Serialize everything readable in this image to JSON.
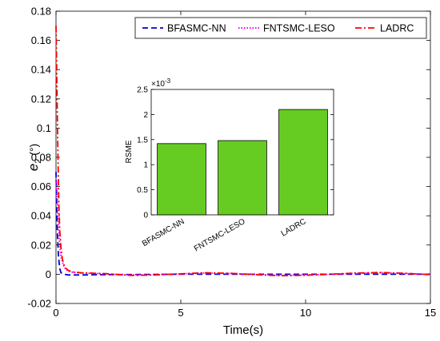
{
  "chart_data": [
    {
      "type": "line",
      "xlabel": "Time(s)",
      "ylabel_main": "e",
      "ylabel_sub": "2",
      "ylabel_unit": " (°)",
      "xlim": [
        0,
        15
      ],
      "ylim": [
        -0.02,
        0.18
      ],
      "xticks": [
        0,
        5,
        10,
        15
      ],
      "yticks": [
        -0.02,
        0,
        0.02,
        0.04,
        0.06,
        0.08,
        0.1,
        0.12,
        0.14,
        0.16,
        0.18
      ],
      "legend_position": "top-right",
      "series": [
        {
          "name": "BFASMC-NN",
          "color": "#0000cc",
          "style": "dashed",
          "x": [
            0,
            0.02,
            0.05,
            0.1,
            0.15,
            0.2,
            0.3,
            0.5,
            1,
            2,
            5,
            10,
            15
          ],
          "y": [
            0.07,
            0.055,
            0.03,
            0.012,
            0.004,
            0.001,
            0,
            -0.0005,
            -0.0005,
            -0.0003,
            0,
            0,
            0
          ]
        },
        {
          "name": "FNTSMC-LESO",
          "color": "#ff00ff",
          "style": "dotted",
          "x": [
            0,
            0.03,
            0.06,
            0.1,
            0.15,
            0.2,
            0.3,
            0.4,
            0.6,
            1,
            2,
            3,
            4,
            5,
            6,
            7,
            8,
            9,
            10,
            11,
            12,
            13,
            14,
            15
          ],
          "y": [
            0.065,
            0.06,
            0.05,
            0.035,
            0.02,
            0.012,
            0.006,
            0.003,
            0.0015,
            0.0008,
            0.0002,
            -0.0005,
            -0.0003,
            0.0002,
            0.0008,
            0.0005,
            -0.0002,
            -0.0008,
            -0.0005,
            0,
            0.0006,
            0.001,
            0.0005,
            -0.0002
          ]
        },
        {
          "name": "LADRC",
          "color": "#ff0000",
          "style": "dashdot",
          "x": [
            0,
            0.02,
            0.04,
            0.06,
            0.08,
            0.1,
            0.12,
            0.15,
            0.2,
            0.25,
            0.3,
            0.4,
            0.5,
            0.7,
            1,
            2,
            3,
            4,
            5,
            6,
            7,
            8,
            9,
            10,
            11,
            12,
            13,
            14,
            15
          ],
          "y": [
            0.17,
            0.15,
            0.125,
            0.1,
            0.08,
            0.06,
            0.045,
            0.03,
            0.018,
            0.011,
            0.007,
            0.004,
            0.0025,
            0.0015,
            0.001,
            0.0004,
            -0.0008,
            -0.0005,
            0.0003,
            0.001,
            0.0006,
            -0.0003,
            -0.001,
            -0.0007,
            0,
            0.0008,
            0.0012,
            0.0006,
            -0.0003
          ]
        }
      ]
    },
    {
      "type": "bar",
      "ylabel": "RSME",
      "exponent_label": "×10",
      "exponent_value": "-3",
      "categories": [
        "BFASMC-NN",
        "FNTSMC-LESO",
        "LADRC"
      ],
      "values": [
        1.42,
        1.48,
        2.1
      ],
      "ylim": [
        0,
        2.5
      ],
      "yticks": [
        0,
        0.5,
        1,
        1.5,
        2,
        2.5
      ],
      "ytick_labels": [
        "0",
        "0.5",
        "1",
        "1.5",
        "2",
        "2.5"
      ],
      "bar_color": "#66cc22"
    }
  ]
}
